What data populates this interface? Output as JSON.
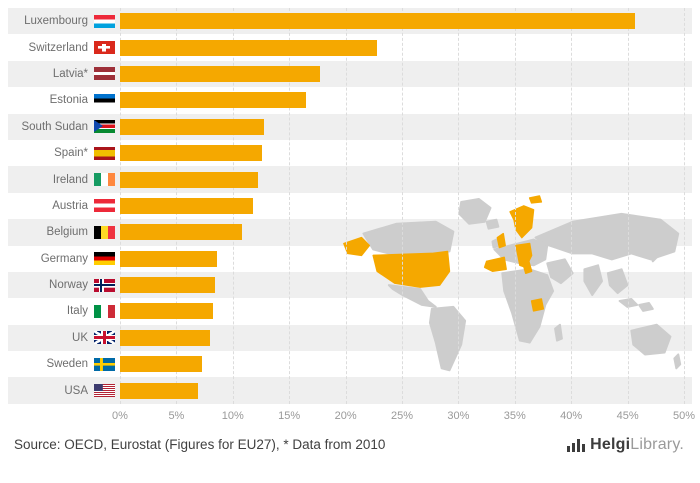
{
  "chart_data": {
    "type": "bar",
    "orientation": "horizontal",
    "title": "",
    "categories": [
      "Luxembourg",
      "Switzerland",
      "Latvia*",
      "Estonia",
      "South Sudan",
      "Spain*",
      "Ireland",
      "Austria",
      "Belgium",
      "Germany",
      "Norway",
      "Italy",
      "UK",
      "Sweden",
      "USA"
    ],
    "values": [
      45,
      22.5,
      17.5,
      16.3,
      12.6,
      12.4,
      12.1,
      11.6,
      10.7,
      8.5,
      8.3,
      8.1,
      7.9,
      7.2,
      6.8
    ],
    "flag_codes": [
      "lu",
      "ch",
      "lv",
      "ee",
      "ss",
      "es",
      "ie",
      "at",
      "be",
      "de",
      "no",
      "it",
      "uk",
      "se",
      "us"
    ],
    "x_ticks": [
      "0%",
      "5%",
      "10%",
      "15%",
      "20%",
      "25%",
      "30%",
      "35%",
      "40%",
      "45%",
      "50%"
    ],
    "xlim": [
      0,
      50
    ],
    "grid": true,
    "legend": "none",
    "bar_color": "#F5A800"
  },
  "map": {
    "description": "world-map-background",
    "land_color": "#CDCDCD",
    "highlight_color": "#F5A800"
  },
  "footer": {
    "source": "Source: OECD, Eurostat (Figures for EU27), * Data from 2010",
    "brand_bold": "Helgi",
    "brand_light": "Library",
    "brand_suffix": "."
  },
  "colors": {
    "bar": "#F5A800",
    "row_stripe": "#EFEFEF",
    "gridline": "#DCDCDC",
    "tick_text": "#999999",
    "label_text": "#6E6E6E"
  }
}
